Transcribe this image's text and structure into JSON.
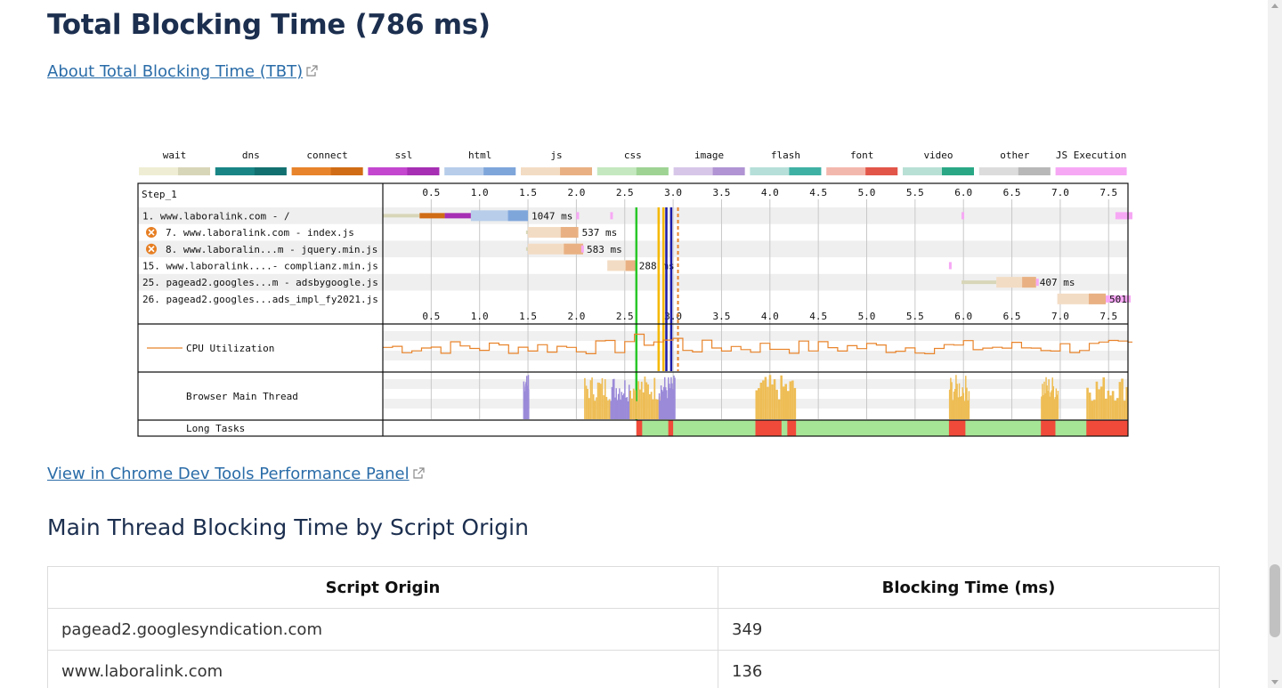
{
  "heading": "Total Blocking Time (786 ms)",
  "about_link": "About Total Blocking Time (TBT)",
  "devtools_link": "View in Chrome Dev Tools Performance Panel",
  "section_title": "Main Thread Blocking Time by Script Origin",
  "table": {
    "headers": [
      "Script Origin",
      "Blocking Time (ms)"
    ],
    "rows": [
      [
        "pagead2.googlesyndication.com",
        "349"
      ],
      [
        "www.laboralink.com",
        "136"
      ]
    ]
  },
  "chart_data": {
    "type": "waterfall",
    "step": "Step_1",
    "legend": [
      {
        "name": "wait",
        "color": "#efeed4",
        "dark": "#d8d6b8"
      },
      {
        "name": "dns",
        "color": "#1a8585",
        "dark": "#137070"
      },
      {
        "name": "connect",
        "color": "#e8842b",
        "dark": "#d06c15"
      },
      {
        "name": "ssl",
        "color": "#c347cf",
        "dark": "#a62fb3"
      },
      {
        "name": "html",
        "color": "#b7cdea",
        "dark": "#7fa6db"
      },
      {
        "name": "js",
        "color": "#f3dcc4",
        "dark": "#e9b183"
      },
      {
        "name": "css",
        "color": "#c5e8c0",
        "dark": "#9ed394"
      },
      {
        "name": "image",
        "color": "#d7c6e8",
        "dark": "#b094d3"
      },
      {
        "name": "flash",
        "color": "#b6dfd9",
        "dark": "#3fb1a4"
      },
      {
        "name": "font",
        "color": "#f3b8ad",
        "dark": "#e2564a"
      },
      {
        "name": "video",
        "color": "#b9e0d5",
        "dark": "#2aa885"
      },
      {
        "name": "other",
        "color": "#dcdcdc",
        "dark": "#b8b8b8"
      },
      {
        "name": "JS Execution",
        "color": "#f7a8f5",
        "dark": "#f7a8f5"
      }
    ],
    "x_ticks": [
      "0.5",
      "1.0",
      "1.5",
      "2.0",
      "2.5",
      "3.0",
      "3.5",
      "4.0",
      "4.5",
      "5.0",
      "5.5",
      "6.0",
      "6.5",
      "7.0",
      "7.5"
    ],
    "x_range": [
      0,
      7.7
    ],
    "requests": [
      {
        "label": "1. www.laboralink.com - /",
        "warn": false,
        "start": 0.0,
        "end": 1.5,
        "type": "html",
        "duration": "1047 ms",
        "phases": {
          "wait": 0.38,
          "dns": 0.0,
          "connect": 0.26,
          "ssl": 0.27
        },
        "js_exec": [
          2.0,
          2.35,
          5.98,
          7.57
        ]
      },
      {
        "label": "7. www.laboralink.com - index.js",
        "warn": true,
        "start": 1.48,
        "end": 2.02,
        "type": "js",
        "duration": "537 ms",
        "phases": {
          "wait": 0.02
        },
        "js_exec": []
      },
      {
        "label": "8. www.laboralin...m - jquery.min.js",
        "warn": true,
        "start": 1.48,
        "end": 2.07,
        "type": "js",
        "duration": "583 ms",
        "phases": {
          "wait": 0.02
        },
        "js_exec": [
          2.05
        ]
      },
      {
        "label": "15. www.laboralink....- complianz.min.js",
        "warn": false,
        "start": 2.32,
        "end": 2.61,
        "type": "js",
        "duration": "288 ms",
        "phases": {},
        "js_exec": [
          5.85
        ]
      },
      {
        "label": "25. pagead2.googles...m - adsbygoogle.js",
        "warn": false,
        "start": 5.98,
        "end": 6.75,
        "type": "js",
        "duration": "407 ms",
        "phases": {
          "wait": 0.36
        },
        "js_exec": [
          6.75
        ]
      },
      {
        "label": "26. pagead2.googles...ads_impl_fy2021.js",
        "warn": false,
        "start": 6.97,
        "end": 7.47,
        "type": "js",
        "duration": "501 ms",
        "phases": {},
        "js_exec": [
          7.47
        ]
      }
    ],
    "markers": [
      {
        "t": 2.62,
        "color": "#28c728"
      },
      {
        "t": 2.85,
        "color": "#f5b800"
      },
      {
        "t": 2.9,
        "color": "#f5b800"
      },
      {
        "t": 2.93,
        "color": "#1c1ca8"
      },
      {
        "t": 2.98,
        "color": "#1c1ca8"
      },
      {
        "t": 3.05,
        "color": "#e8842b",
        "dashed": true
      }
    ],
    "cpu_label": "CPU Utilization",
    "main_thread_label": "Browser Main Thread",
    "long_tasks_label": "Long Tasks",
    "long_tasks_start": 2.62,
    "long_tasks": [
      [
        2.62,
        2.68
      ],
      [
        2.95,
        3.0
      ],
      [
        3.85,
        4.12
      ],
      [
        4.18,
        4.27
      ],
      [
        5.85,
        6.02
      ],
      [
        6.8,
        6.95
      ],
      [
        7.27,
        7.7
      ]
    ],
    "main_thread_bursts": [
      {
        "from": 1.45,
        "to": 1.5,
        "color": "#9b8ad8"
      },
      {
        "from": 2.08,
        "to": 2.35,
        "color": "#eebd55"
      },
      {
        "from": 2.35,
        "to": 2.55,
        "color": "#9b8ad8"
      },
      {
        "from": 2.55,
        "to": 2.85,
        "color": "#eebd55"
      },
      {
        "from": 2.85,
        "to": 3.02,
        "color": "#9b8ad8"
      },
      {
        "from": 3.85,
        "to": 4.27,
        "color": "#eebd55"
      },
      {
        "from": 5.85,
        "to": 6.05,
        "color": "#eebd55"
      },
      {
        "from": 6.8,
        "to": 6.97,
        "color": "#eebd55"
      },
      {
        "from": 7.27,
        "to": 7.7,
        "color": "#eebd55"
      }
    ]
  }
}
